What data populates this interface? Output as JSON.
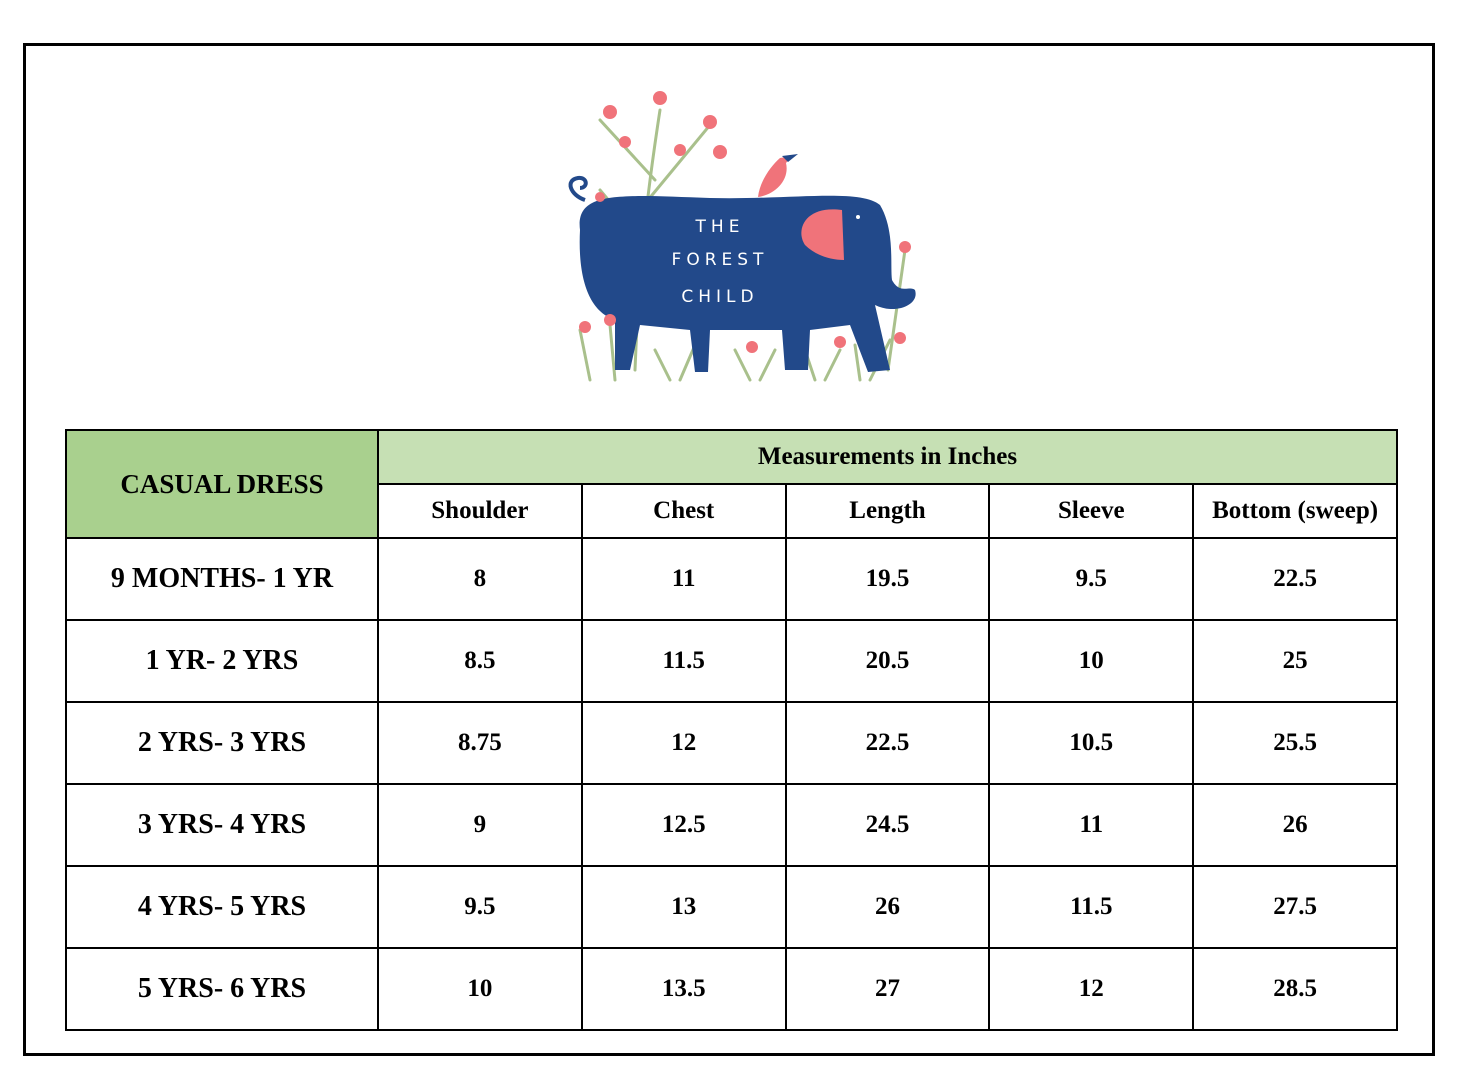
{
  "logo": {
    "text_lines": [
      "THE",
      "FOREST",
      "CHILD"
    ],
    "colors": {
      "elephant": "#22498a",
      "accent": "#f0737a",
      "foliage": "#a9c08c"
    }
  },
  "table": {
    "corner_label": "CASUAL DRESS",
    "group_header": "Measurements in Inches",
    "columns": [
      "Shoulder",
      "Chest",
      "Length",
      "Sleeve",
      "Bottom (sweep)"
    ],
    "rows": [
      {
        "size": "9 MONTHS- 1 YR",
        "values": [
          "8",
          "11",
          "19.5",
          "9.5",
          "22.5"
        ]
      },
      {
        "size": "1 YR- 2 YRS",
        "values": [
          "8.5",
          "11.5",
          "20.5",
          "10",
          "25"
        ]
      },
      {
        "size": "2 YRS- 3 YRS",
        "values": [
          "8.75",
          "12",
          "22.5",
          "10.5",
          "25.5"
        ]
      },
      {
        "size": "3 YRS- 4 YRS",
        "values": [
          "9",
          "12.5",
          "24.5",
          "11",
          "26"
        ]
      },
      {
        "size": "4 YRS- 5 YRS",
        "values": [
          "9.5",
          "13",
          "26",
          "11.5",
          "27.5"
        ]
      },
      {
        "size": "5 YRS- 6 YRS",
        "values": [
          "10",
          "13.5",
          "27",
          "12",
          "28.5"
        ]
      }
    ],
    "colors": {
      "corner_bg": "#a9d08e",
      "header_bg": "#c6e0b4"
    }
  }
}
